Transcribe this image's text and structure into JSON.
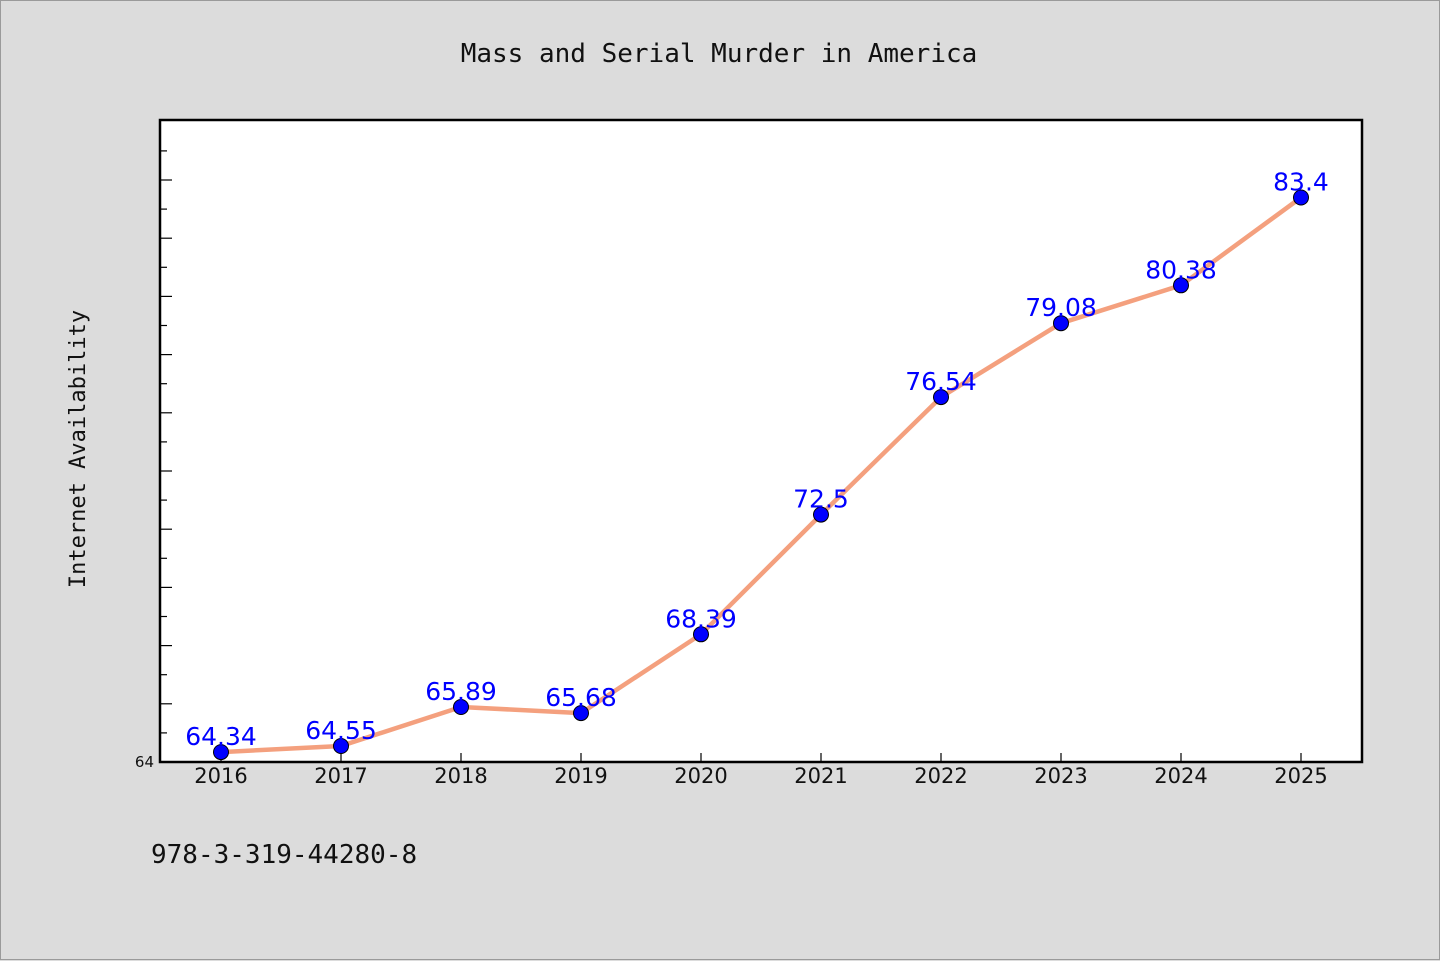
{
  "chart_data": {
    "type": "line",
    "title": "Mass and Serial Murder in America",
    "xlabel": "",
    "ylabel": "Internet Availability",
    "x": [
      "2016",
      "2017",
      "2018",
      "2019",
      "2020",
      "2021",
      "2022",
      "2023",
      "2024",
      "2025"
    ],
    "series": [
      {
        "values": [
          64.34,
          64.55,
          65.89,
          65.68,
          68.39,
          72.5,
          76.54,
          79.08,
          80.38,
          83.4
        ]
      }
    ],
    "data_labels": [
      "64.34",
      "64.55",
      "65.89",
      "65.68",
      "68.39",
      "72.5",
      "76.54",
      "79.08",
      "80.38",
      "83.4"
    ],
    "ylim": [
      64,
      86
    ],
    "y_tick_labels": [
      "64"
    ],
    "grid": false,
    "legend": "none",
    "colors": {
      "line": "#f4a07e",
      "marker": "#0000ff",
      "label": "#0000ff",
      "background": "#dcdcdc",
      "plot_background": "#ffffff"
    }
  },
  "footnote": "978-3-319-44280-8"
}
